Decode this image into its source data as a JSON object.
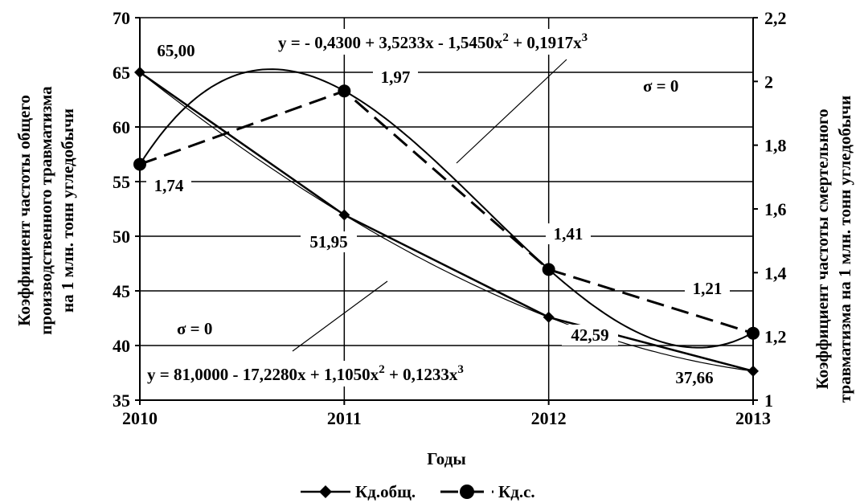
{
  "chart_data": {
    "type": "line",
    "x": [
      2010,
      2011,
      2012,
      2013
    ],
    "xlabel": "Годы",
    "ylabel_left": [
      "Коэффициент частоты общего",
      "производственного травматизма",
      "на 1 млн. тонн угледобычи"
    ],
    "ylabel_right": [
      "Коэффициент частоты смертельного",
      "травматизма на 1 млн. тонн угледобычи"
    ],
    "ylim_left": [
      35,
      70
    ],
    "yticks_left": [
      "35",
      "40",
      "45",
      "50",
      "55",
      "60",
      "65",
      "70"
    ],
    "ylim_right": [
      1,
      2.2
    ],
    "yticks_right": [
      "1",
      "1,2",
      "1,4",
      "1,6",
      "1,8",
      "2",
      "2,2"
    ],
    "xticks": [
      "2010",
      "2011",
      "2012",
      "2013"
    ],
    "grid": "horizontal",
    "series": [
      {
        "name": "Кд.общ.",
        "axis": "left",
        "marker": "diamond",
        "values": [
          65.0,
          51.95,
          42.59,
          37.66
        ],
        "labels": [
          "65,00",
          "51,95",
          "42,59",
          "37,66"
        ],
        "trend": {
          "equation": "y = 81,0000 - 17,2280x + 1,1050x",
          "sigma": "σ = 0"
        }
      },
      {
        "name": "Кд.с.",
        "axis": "right",
        "marker": "circle",
        "dashed": true,
        "values": [
          1.74,
          1.97,
          1.41,
          1.21
        ],
        "labels": [
          "1,74",
          "1,97",
          "1,41",
          "1,21"
        ],
        "trend": {
          "equation": "y = - 0,4300 + 3,5233x - 1,5450x",
          "sigma": "σ = 0"
        }
      }
    ],
    "eq_top": {
      "prefix": "y = - 0,4300 + 3,5233x - 1,5450x",
      "mid": " + 0,1917x",
      "sup": "2",
      "sup3": "3"
    },
    "eq_bottom": {
      "prefix": "y = 81,0000 - 17,2280x + 1,1050x",
      "mid": "  + 0,1233x",
      "sup": "2",
      "sup3": "3"
    },
    "sigma_top": "σ = 0",
    "sigma_bottom": "σ = 0"
  }
}
